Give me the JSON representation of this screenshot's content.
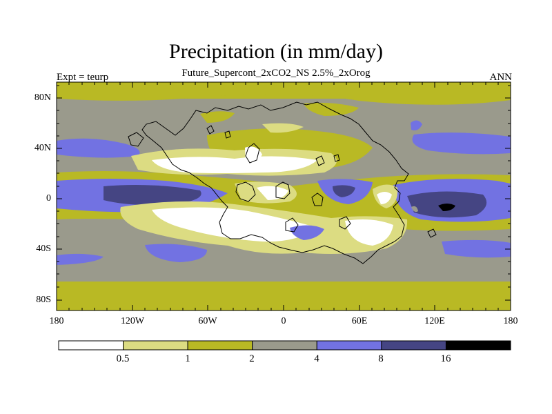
{
  "title": "Precipitation (in mm/day)",
  "subtitle": "Future_Supercont_2xCO2_NS 2.5%_2xOrog",
  "left_label": "Expt = teurp",
  "right_label": "ANN",
  "lat_labels": [
    "80N",
    "40N",
    "0",
    "40S",
    "80S"
  ],
  "lon_labels": [
    "180",
    "120W",
    "60W",
    "0",
    "60E",
    "120E",
    "180"
  ],
  "colorbar": {
    "tick_labels": [
      "0.5",
      "1",
      "2",
      "4",
      "8",
      "16"
    ],
    "colors": [
      "#ffffff",
      "#dcdc82",
      "#b9b924",
      "#9a9a8c",
      "#7272e2",
      "#454583",
      "#000000"
    ]
  }
}
